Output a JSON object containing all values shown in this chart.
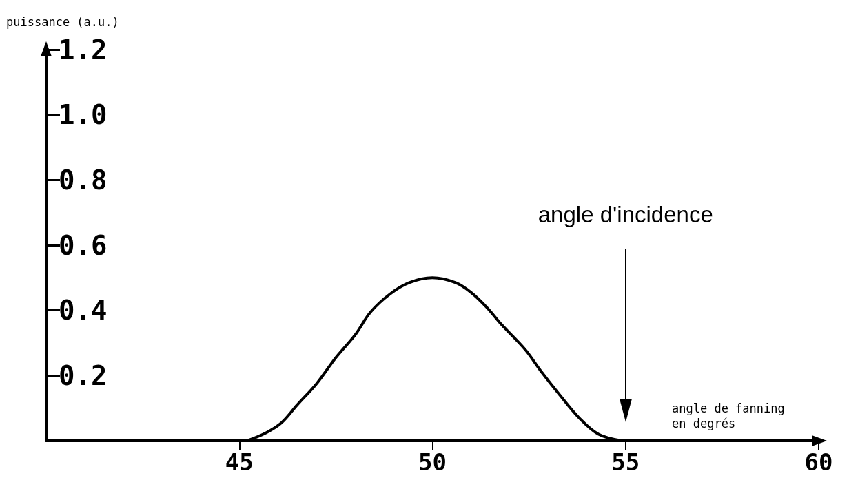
{
  "chart_data": {
    "type": "line",
    "xlabel": "angle de fanning\nen degrés",
    "ylabel": "puissance (a.u.)",
    "x": [
      45.2,
      45.7,
      46.1,
      46.5,
      47.0,
      47.5,
      48.0,
      48.4,
      48.9,
      49.4,
      50.0,
      50.6,
      51.0,
      51.4,
      51.8,
      52.4,
      52.8,
      53.3,
      53.8,
      54.3,
      54.9
    ],
    "series": [
      {
        "color": "#000000",
        "values": [
          0,
          0.025,
          0.056,
          0.11,
          0.175,
          0.255,
          0.325,
          0.395,
          0.45,
          0.485,
          0.5,
          0.485,
          0.455,
          0.41,
          0.355,
          0.28,
          0.215,
          0.14,
          0.07,
          0.02,
          0
        ]
      }
    ],
    "xlim": [
      40,
      60
    ],
    "xticks": [
      45,
      50,
      55,
      60
    ],
    "ylim": [
      0,
      1.2
    ],
    "yticks": [
      0.2,
      0.4,
      0.6,
      0.8,
      {
        "value": 1,
        "label": "1.0"
      },
      1.2
    ],
    "ref_lines": [
      {
        "axis": "x",
        "value": 55,
        "label": "angle d'incidence",
        "color": "#000000"
      }
    ]
  }
}
